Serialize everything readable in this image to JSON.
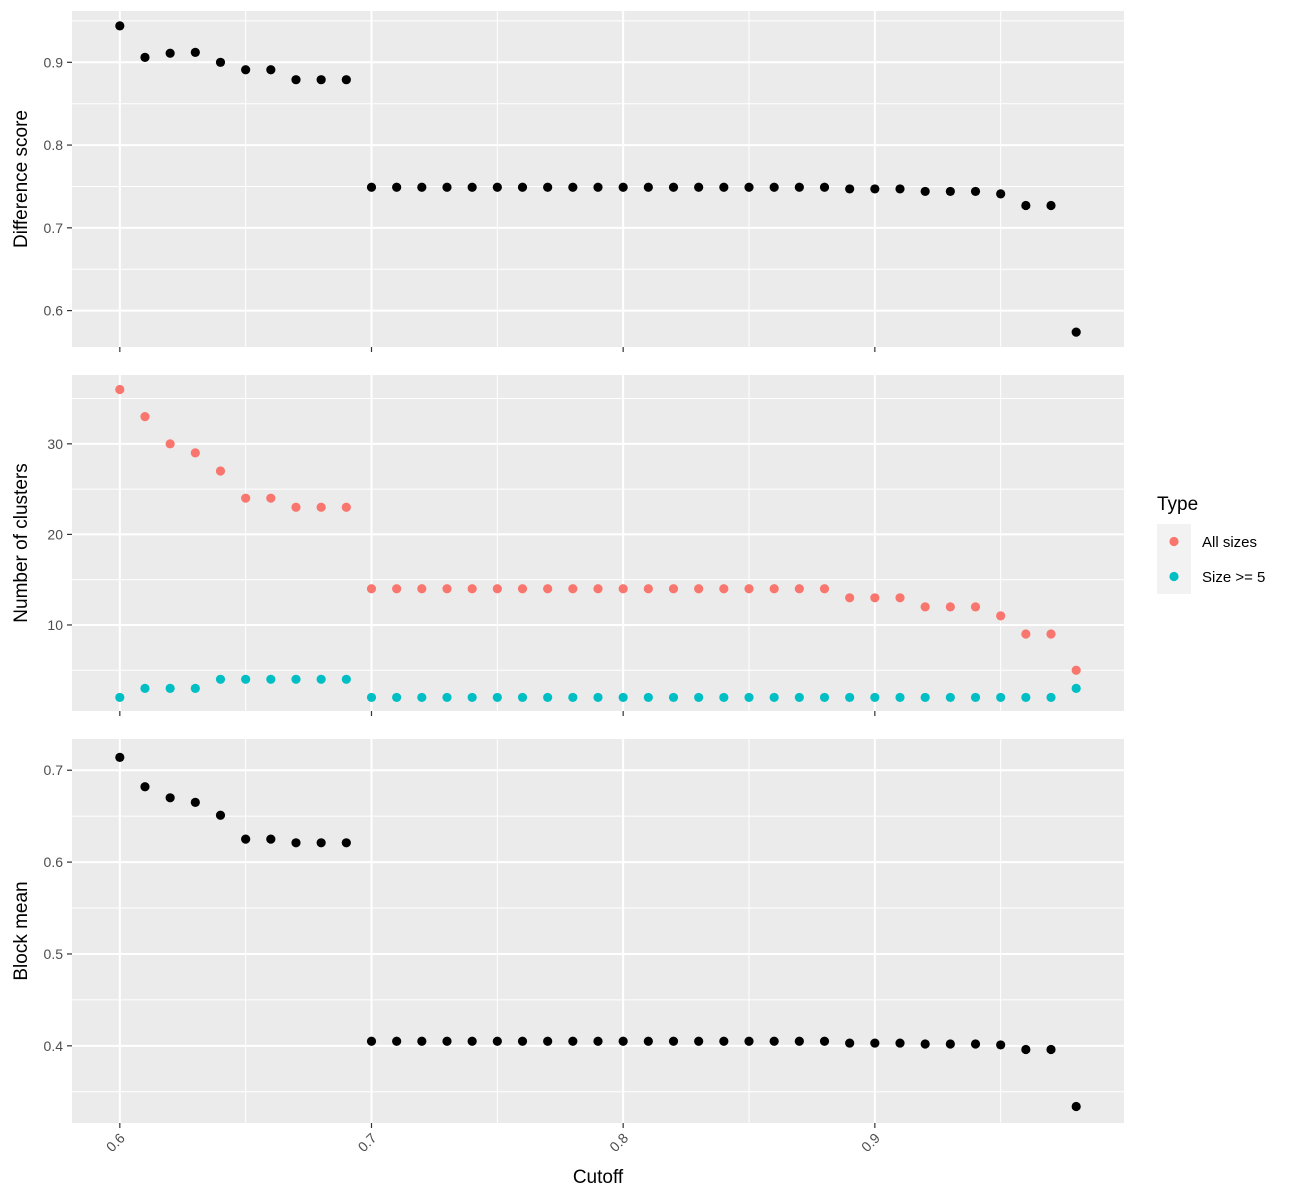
{
  "chart_data": {
    "type": "scatter",
    "xlabel": "Cutoff",
    "x": [
      0.6,
      0.61,
      0.62,
      0.63,
      0.64,
      0.65,
      0.66,
      0.67,
      0.68,
      0.69,
      0.7,
      0.71,
      0.72,
      0.73,
      0.74,
      0.75,
      0.76,
      0.77,
      0.78,
      0.79,
      0.8,
      0.81,
      0.82,
      0.83,
      0.84,
      0.85,
      0.86,
      0.87,
      0.88,
      0.89,
      0.9,
      0.91,
      0.92,
      0.93,
      0.94,
      0.95,
      0.96,
      0.97,
      0.98
    ],
    "xlim": [
      0.581,
      0.999
    ],
    "xticks": [
      0.6,
      0.7,
      0.8,
      0.9
    ],
    "xtick_labels": [
      "0.6",
      "0.7",
      "0.8",
      "0.9"
    ],
    "grid": true,
    "legend_position": "right",
    "panels": [
      {
        "ylabel": "Difference score",
        "ylim": [
          0.556,
          0.962
        ],
        "yticks": [
          0.6,
          0.7,
          0.8,
          0.9
        ],
        "ytick_labels": [
          "0.6",
          "0.7",
          "0.8",
          "0.9"
        ],
        "series": [
          {
            "color": "#000000",
            "values": [
              0.944,
              0.906,
              0.911,
              0.912,
              0.9,
              0.891,
              0.891,
              0.879,
              0.879,
              0.879,
              0.749,
              0.749,
              0.749,
              0.749,
              0.749,
              0.749,
              0.749,
              0.749,
              0.749,
              0.749,
              0.749,
              0.749,
              0.749,
              0.749,
              0.749,
              0.749,
              0.749,
              0.749,
              0.749,
              0.747,
              0.747,
              0.747,
              0.744,
              0.744,
              0.744,
              0.741,
              0.727,
              0.727,
              0.574
            ]
          }
        ]
      },
      {
        "ylabel": "Number of clusters",
        "ylim": [
          0.5,
          37.6
        ],
        "yticks": [
          10,
          20,
          30
        ],
        "ytick_labels": [
          "10",
          "20",
          "30"
        ],
        "series": [
          {
            "name": "All sizes",
            "color": "#F8766D",
            "values": [
              36,
              33,
              30,
              29,
              27,
              24,
              24,
              23,
              23,
              23,
              14,
              14,
              14,
              14,
              14,
              14,
              14,
              14,
              14,
              14,
              14,
              14,
              14,
              14,
              14,
              14,
              14,
              14,
              14,
              13,
              13,
              13,
              12,
              12,
              12,
              11,
              9,
              9,
              5
            ]
          },
          {
            "name": "Size >= 5",
            "color": "#00BFC4",
            "values": [
              2,
              3,
              3,
              3,
              4,
              4,
              4,
              4,
              4,
              4,
              2,
              2,
              2,
              2,
              2,
              2,
              2,
              2,
              2,
              2,
              2,
              2,
              2,
              2,
              2,
              2,
              2,
              2,
              2,
              2,
              2,
              2,
              2,
              2,
              2,
              2,
              2,
              2,
              3
            ]
          }
        ]
      },
      {
        "ylabel": "Block mean",
        "ylim": [
          0.316,
          0.734
        ],
        "yticks": [
          0.4,
          0.5,
          0.6,
          0.7
        ],
        "ytick_labels": [
          "0.4",
          "0.5",
          "0.6",
          "0.7"
        ],
        "series": [
          {
            "color": "#000000",
            "values": [
              0.714,
              0.682,
              0.67,
              0.665,
              0.651,
              0.625,
              0.625,
              0.621,
              0.621,
              0.621,
              0.405,
              0.405,
              0.405,
              0.405,
              0.405,
              0.405,
              0.405,
              0.405,
              0.405,
              0.405,
              0.405,
              0.405,
              0.405,
              0.405,
              0.405,
              0.405,
              0.405,
              0.405,
              0.405,
              0.403,
              0.403,
              0.403,
              0.402,
              0.402,
              0.402,
              0.401,
              0.396,
              0.396,
              0.334
            ]
          }
        ]
      }
    ],
    "legend": {
      "title": "Type",
      "items": [
        {
          "label": "All sizes",
          "color": "#F8766D"
        },
        {
          "label": "Size >= 5",
          "color": "#00BFC4"
        }
      ]
    }
  }
}
